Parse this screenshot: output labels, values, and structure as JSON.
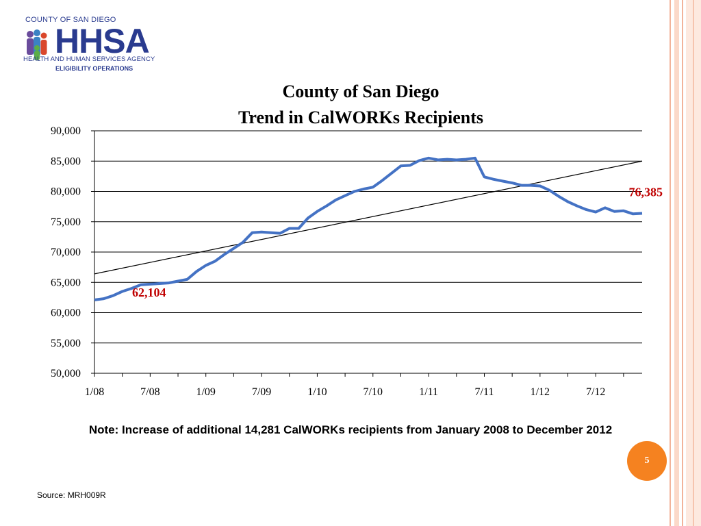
{
  "colors": {
    "series": "#4472c4",
    "trend": "#000000",
    "label": "#c00000",
    "badge": "#f58220"
  },
  "logo": {
    "top_text": "COUNTY OF SAN DIEGO",
    "big_text": "HHSA",
    "sub_text": "HEALTH AND HUMAN SERVICES AGENCY",
    "sub_text2": "ELIGIBILITY OPERATIONS",
    "icon": "people-figures-icon"
  },
  "chart_data": {
    "type": "line",
    "title": [
      "County of San Diego",
      "Trend in CalWORKs Recipients"
    ],
    "xlabel": "",
    "ylabel": "",
    "ylim": [
      50000,
      90000
    ],
    "yticks": [
      "50,000",
      "55,000",
      "60,000",
      "65,000",
      "70,000",
      "75,000",
      "80,000",
      "85,000",
      "90,000"
    ],
    "ytick_values": [
      50000,
      55000,
      60000,
      65000,
      70000,
      75000,
      80000,
      85000,
      90000
    ],
    "xtick_labels": [
      "1/08",
      "7/08",
      "1/09",
      "7/09",
      "1/10",
      "7/10",
      "1/11",
      "7/11",
      "1/12",
      "7/12"
    ],
    "xtick_index": [
      0,
      6,
      12,
      18,
      24,
      30,
      36,
      42,
      48,
      54
    ],
    "grid": "horizontal",
    "series": [
      {
        "name": "CalWORKs Recipients",
        "values": [
          62104,
          62300,
          62800,
          63500,
          64000,
          64600,
          64700,
          64800,
          64900,
          65200,
          65500,
          66800,
          67800,
          68500,
          69600,
          70600,
          71600,
          73200,
          73300,
          73200,
          73100,
          73900,
          73900,
          75600,
          76700,
          77600,
          78600,
          79300,
          80000,
          80400,
          80700,
          81800,
          83000,
          84200,
          84300,
          85100,
          85500,
          85200,
          85300,
          85200,
          85300,
          85500,
          82400,
          82000,
          81700,
          81400,
          81000,
          81000,
          80900,
          80200,
          79200,
          78300,
          77600,
          77000,
          76600,
          77300,
          76700,
          76800,
          76300,
          76385
        ]
      }
    ],
    "trendline": {
      "start": 66400,
      "end": 85000
    },
    "annotations": [
      {
        "text": "62,104",
        "index": 0
      },
      {
        "text": "76,385",
        "index": 59
      }
    ]
  },
  "note": "Note:  Increase of additional 14,281 CalWORKs recipients from January 2008 to December 2012",
  "page_number": "5",
  "source": "Source: MRH009R"
}
